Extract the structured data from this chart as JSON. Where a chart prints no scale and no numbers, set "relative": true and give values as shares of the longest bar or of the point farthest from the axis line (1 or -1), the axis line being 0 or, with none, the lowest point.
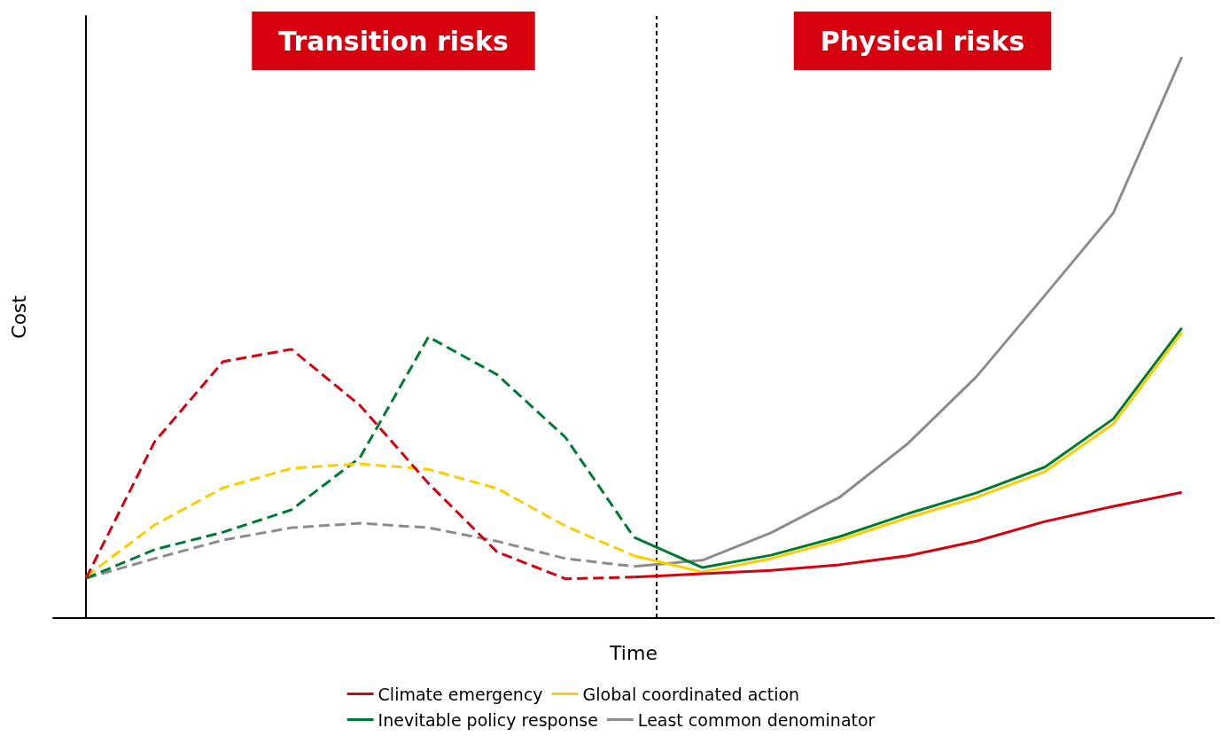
{
  "chart_data": {
    "type": "line",
    "relative": true,
    "xlabel": "Time",
    "ylabel": "Cost",
    "legend": "bottom",
    "grid": false,
    "marker": "none",
    "categories": [
      null,
      null,
      null,
      null,
      null,
      null,
      null,
      null,
      null,
      null,
      null,
      null,
      null,
      null,
      null,
      null,
      null
    ],
    "annotations": [
      "Transition risks",
      "Physical risks"
    ],
    "series": [
      {
        "name": "Climate emergency",
        "color": "#d7000f",
        "line_style": "dashed",
        "values": [
          0.071,
          0.314,
          0.457,
          0.479,
          0.379,
          0.24,
          0.118,
          0.07,
          0.073,
          null,
          null,
          null,
          null,
          null,
          null,
          null,
          null
        ]
      },
      {
        "color": "#d7000f",
        "line_style": "solid",
        "values": [
          null,
          null,
          null,
          null,
          null,
          null,
          null,
          null,
          0.073,
          0.079,
          0.085,
          0.095,
          0.111,
          0.137,
          0.172,
          0.199,
          0.224
        ]
      },
      {
        "name": "Global coordinated action",
        "color": "#ffcc00",
        "line_style": "dashed",
        "values": [
          0.074,
          0.166,
          0.232,
          0.267,
          0.275,
          0.265,
          0.231,
          0.164,
          0.111,
          null,
          null,
          null,
          null,
          null,
          null,
          null,
          null
        ]
      },
      {
        "color": "#ffcc00",
        "line_style": "solid",
        "values": [
          null,
          null,
          null,
          null,
          null,
          null,
          null,
          null,
          0.111,
          0.082,
          0.106,
          0.139,
          0.179,
          0.215,
          0.261,
          0.346,
          0.509
        ]
      },
      {
        "name": "Inevitable policy response",
        "color": "#007a33",
        "line_style": "dashed",
        "values": [
          0.071,
          0.122,
          0.153,
          0.193,
          0.286,
          0.501,
          0.434,
          0.322,
          0.144,
          null,
          null,
          null,
          null,
          null,
          null,
          null,
          null
        ]
      },
      {
        "color": "#007a33",
        "line_style": "solid",
        "values": [
          null,
          null,
          null,
          null,
          null,
          null,
          null,
          null,
          0.144,
          0.09,
          0.112,
          0.145,
          0.186,
          0.223,
          0.269,
          0.355,
          0.517
        ]
      },
      {
        "name": "Least common denominator",
        "color": "#8c8c8c",
        "line_style": "dashed",
        "values": [
          0.071,
          0.106,
          0.139,
          0.161,
          0.169,
          0.161,
          0.137,
          0.106,
          0.092,
          null,
          null,
          null,
          null,
          null,
          null,
          null,
          null
        ]
      },
      {
        "color": "#8c8c8c",
        "line_style": "solid",
        "values": [
          null,
          null,
          null,
          null,
          null,
          null,
          null,
          null,
          0.092,
          0.103,
          0.152,
          0.215,
          0.311,
          0.43,
          0.575,
          0.722,
          1
        ]
      }
    ]
  }
}
